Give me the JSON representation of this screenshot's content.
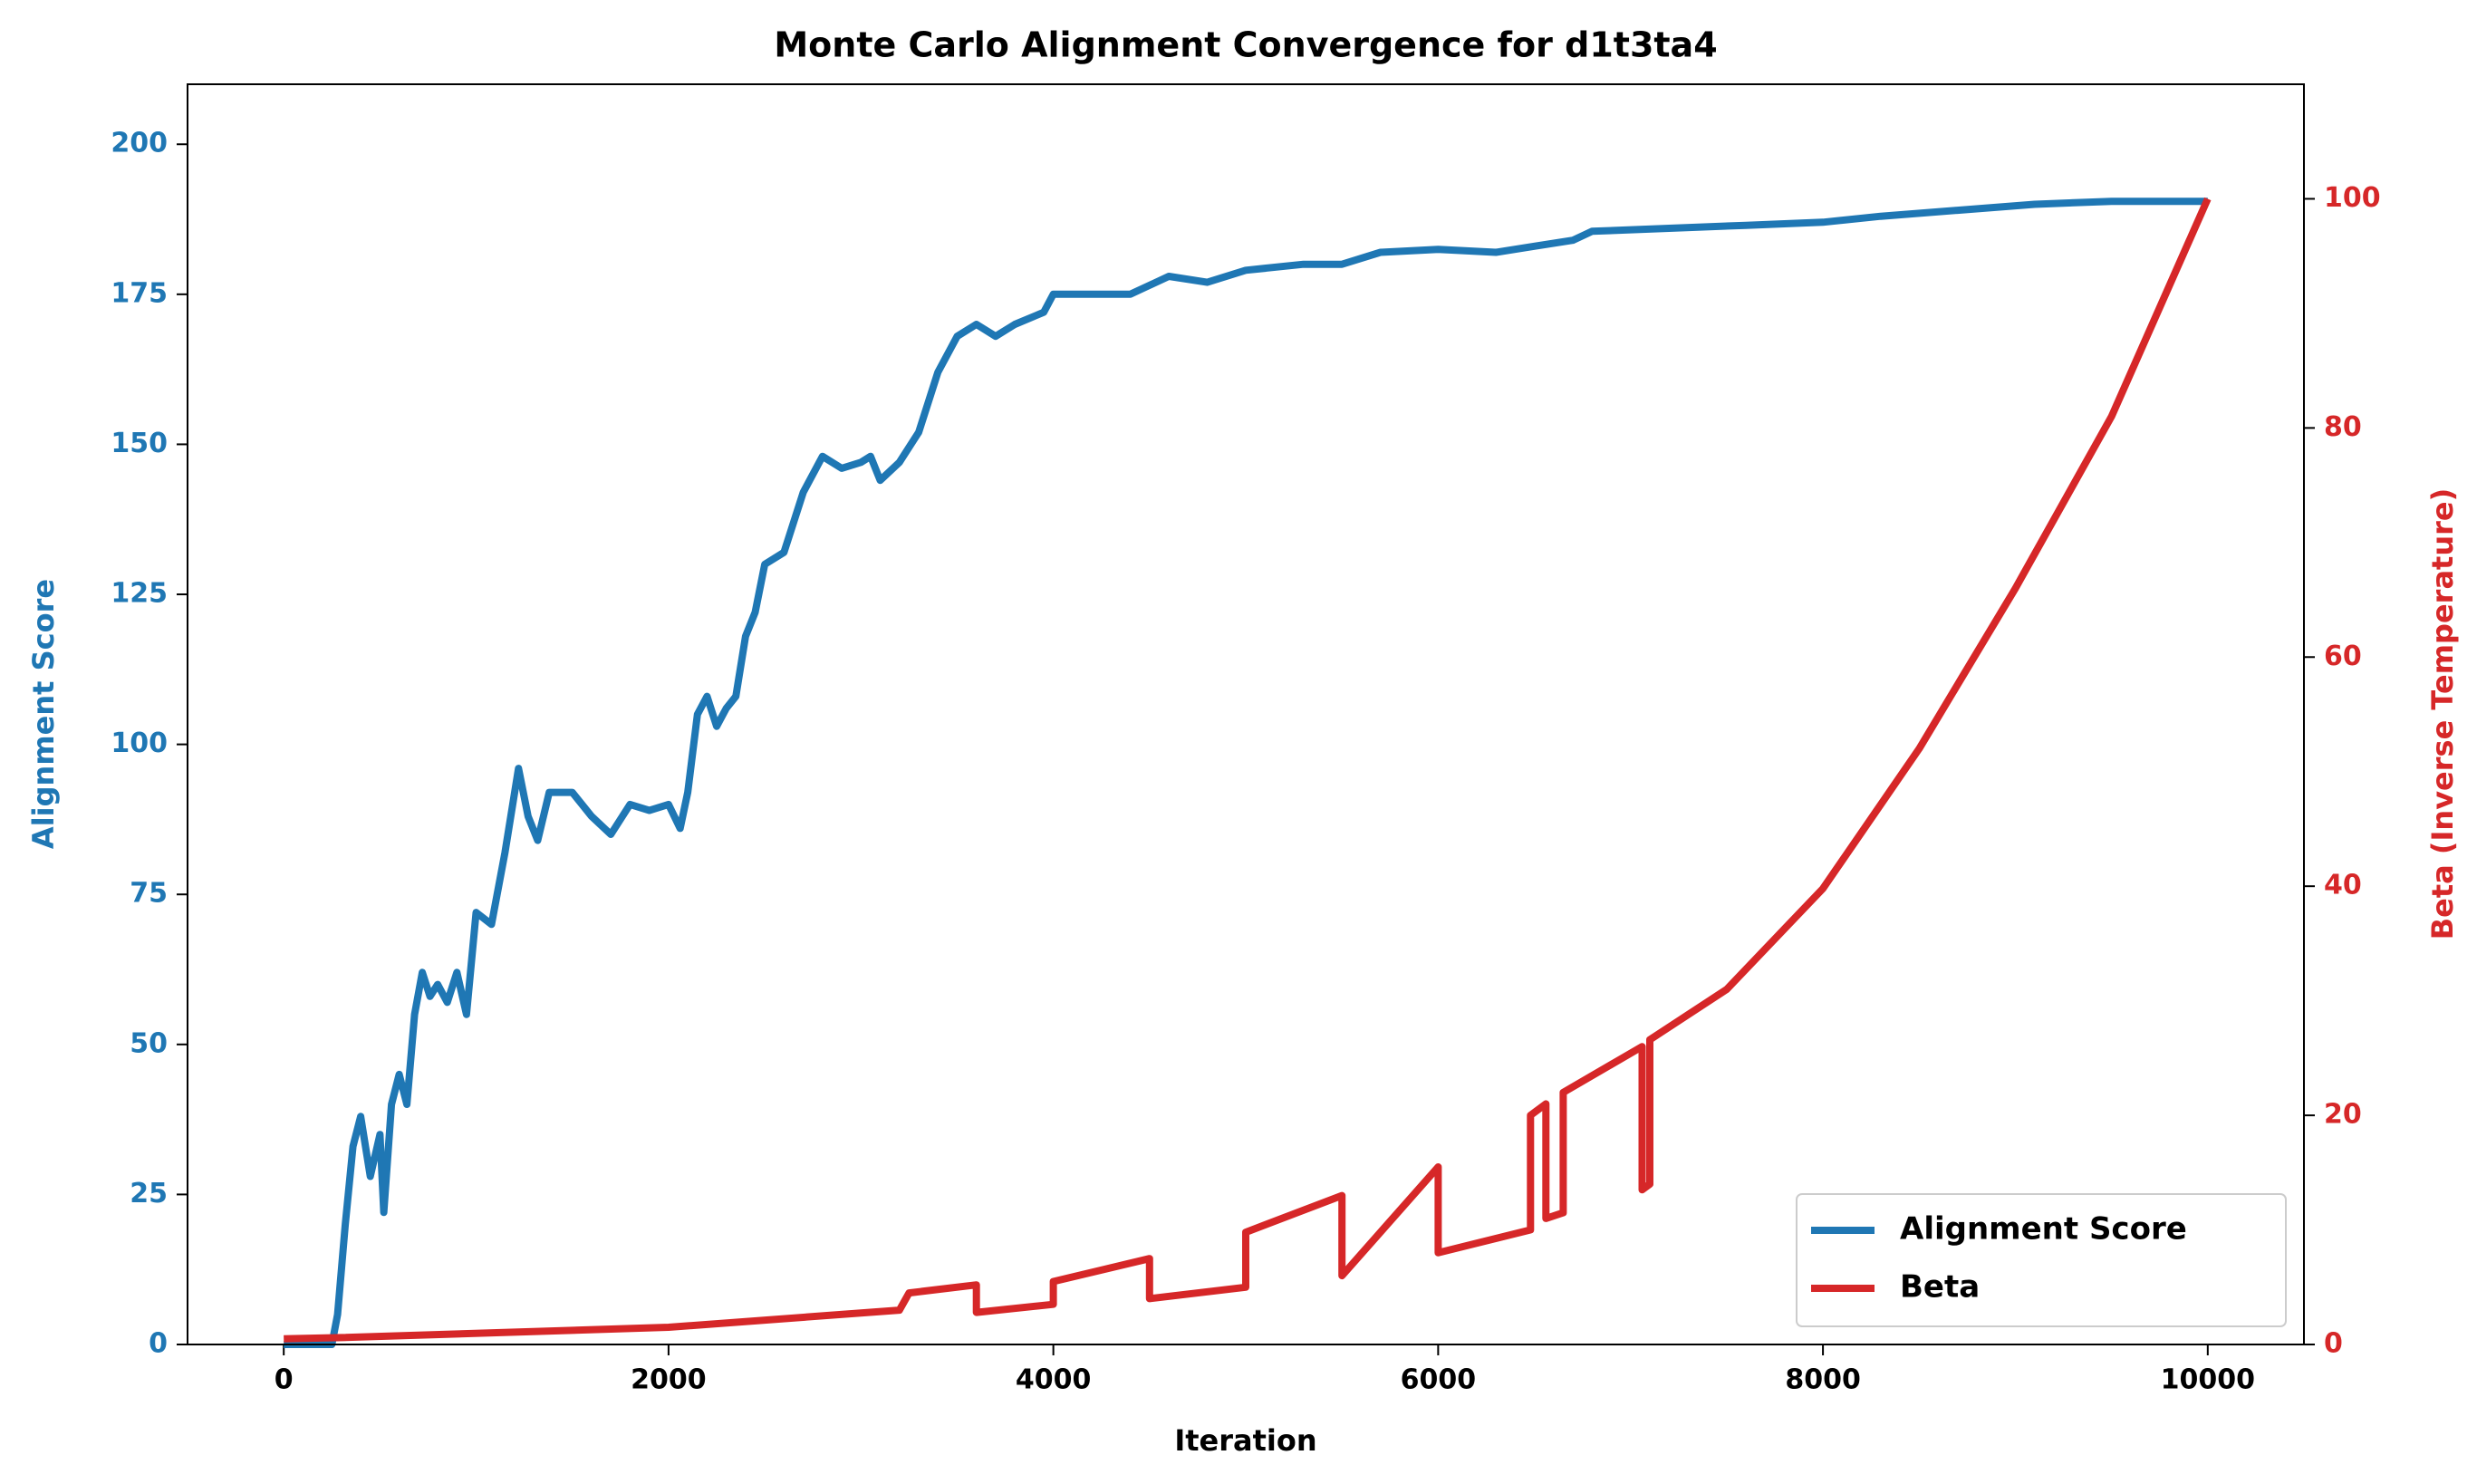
{
  "chart_data": {
    "type": "line",
    "title": "Monte Carlo Alignment Convergence for d1t3ta4",
    "x_label": "Iteration",
    "y_label": "Alignment Score",
    "y2_label": "Beta (Inverse Temperature)",
    "xlim": [
      -500,
      10500
    ],
    "xticks": [
      0,
      2000,
      4000,
      6000,
      8000,
      10000
    ],
    "ylim": [
      0,
      210
    ],
    "yticks": [
      0,
      25,
      50,
      75,
      100,
      125,
      150,
      175,
      200
    ],
    "y2lim": [
      0,
      110
    ],
    "y2ticks": [
      0,
      20,
      40,
      60,
      80,
      100
    ],
    "legend": "lower right",
    "series": [
      {
        "name": "Alignment Score",
        "color": "#1f77b4",
        "x": [
          0,
          250,
          280,
          320,
          360,
          400,
          450,
          500,
          520,
          560,
          600,
          640,
          680,
          720,
          760,
          800,
          850,
          900,
          950,
          1000,
          1080,
          1150,
          1220,
          1270,
          1320,
          1380,
          1500,
          1600,
          1700,
          1800,
          1900,
          2000,
          2060,
          2100,
          2150,
          2200,
          2250,
          2300,
          2350,
          2400,
          2450,
          2500,
          2600,
          2700,
          2800,
          2900,
          3000,
          3050,
          3100,
          3200,
          3300,
          3400,
          3500,
          3600,
          3700,
          3800,
          3950,
          4000,
          4200,
          4400,
          4600,
          4800,
          5000,
          5300,
          5500,
          5700,
          6000,
          6300,
          6500,
          6700,
          6800,
          7200,
          7600,
          8000,
          8300,
          8700,
          9100,
          9500,
          10000
        ],
        "values": [
          0,
          0,
          5,
          20,
          33,
          38,
          28,
          35,
          22,
          40,
          45,
          40,
          55,
          62,
          58,
          60,
          57,
          62,
          55,
          72,
          70,
          82,
          96,
          88,
          84,
          92,
          92,
          88,
          85,
          90,
          89,
          90,
          86,
          92,
          105,
          108,
          103,
          106,
          108,
          118,
          122,
          130,
          132,
          142,
          148,
          146,
          147,
          148,
          144,
          147,
          152,
          162,
          168,
          170,
          168,
          170,
          172,
          175,
          175,
          175,
          178,
          177,
          179,
          180,
          180,
          182,
          182.5,
          182,
          183,
          184,
          185.5,
          186,
          186.5,
          187,
          188,
          189,
          190,
          190.5,
          190.5
        ]
      },
      {
        "name": "Beta",
        "color": "#d62728",
        "axis": "y2",
        "x": [
          0,
          300,
          2000,
          3200,
          3250,
          3600,
          3600,
          4000,
          4000,
          4500,
          4500,
          5000,
          5000,
          5500,
          5500,
          6000,
          6000,
          6480,
          6480,
          6560,
          6560,
          6650,
          6650,
          7060,
          7060,
          7100,
          7100,
          7500,
          8000,
          8500,
          9000,
          9500,
          10000
        ],
        "values": [
          0.5,
          0.6,
          1.5,
          3,
          4.5,
          5.2,
          2.8,
          3.5,
          5.5,
          7.5,
          4,
          5,
          9.8,
          13,
          6,
          15.5,
          8,
          10,
          20,
          21,
          11,
          11.5,
          22,
          26,
          13.5,
          14,
          26.6,
          31,
          39.8,
          52,
          66,
          81,
          100
        ]
      }
    ]
  }
}
